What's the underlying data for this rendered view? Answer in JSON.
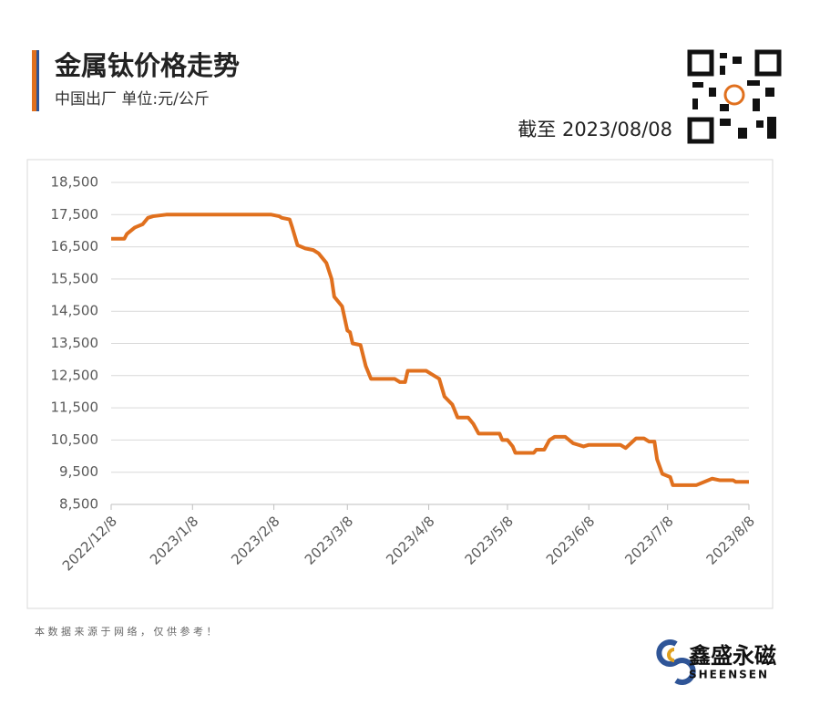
{
  "header": {
    "title": "金属钛价格走势",
    "subtitle": "中国出厂  单位:元/公斤",
    "as_of": "截至 2023/08/08"
  },
  "footer": {
    "note": "本 数 据 来 源 于 网 络 ， 仅 供 参 考 ！",
    "brand": "鑫盛永磁",
    "brand_en": "SHEENSEN"
  },
  "chart_data": {
    "type": "line",
    "x": [
      "2022/12/8",
      "2022/12/13",
      "2022/12/14",
      "2022/12/17",
      "2022/12/20",
      "2022/12/22",
      "2022/12/24",
      "2022/12/29",
      "2023/2/7",
      "2023/2/10",
      "2023/2/11",
      "2023/2/14",
      "2023/2/15",
      "2023/2/17",
      "2023/2/20",
      "2023/2/23",
      "2023/2/25",
      "2023/2/26",
      "2023/2/28",
      "2023/3/2",
      "2023/3/3",
      "2023/3/6",
      "2023/3/8",
      "2023/3/9",
      "2023/3/10",
      "2023/3/13",
      "2023/3/15",
      "2023/3/17",
      "2023/3/26",
      "2023/3/28",
      "2023/3/30",
      "2023/3/31",
      "2023/4/7",
      "2023/4/9",
      "2023/4/12",
      "2023/4/14",
      "2023/4/17",
      "2023/4/19",
      "2023/4/23",
      "2023/4/25",
      "2023/4/27",
      "2023/5/5",
      "2023/5/6",
      "2023/5/8",
      "2023/5/10",
      "2023/5/11",
      "2023/5/18",
      "2023/5/19",
      "2023/5/22",
      "2023/5/24",
      "2023/5/26",
      "2023/5/30",
      "2023/6/2",
      "2023/6/6",
      "2023/6/8",
      "2023/6/20",
      "2023/6/22",
      "2023/6/26",
      "2023/6/29",
      "2023/7/1",
      "2023/7/3",
      "2023/7/4",
      "2023/7/6",
      "2023/7/9",
      "2023/7/10",
      "2023/7/19",
      "2023/7/25",
      "2023/7/28",
      "2023/8/2",
      "2023/8/3",
      "2023/8/8"
    ],
    "series": [
      {
        "name": "金属钛",
        "color": "#e0701e",
        "values": [
          16750,
          16750,
          16900,
          17100,
          17200,
          17400,
          17450,
          17500,
          17500,
          17450,
          17400,
          17350,
          17100,
          16550,
          16450,
          16400,
          16300,
          16200,
          16000,
          15500,
          14950,
          14650,
          13900,
          13850,
          13500,
          13450,
          12800,
          12400,
          12400,
          12300,
          12300,
          12650,
          12650,
          12550,
          12400,
          11850,
          11600,
          11200,
          11200,
          11000,
          10700,
          10700,
          10500,
          10500,
          10300,
          10100,
          10100,
          10200,
          10200,
          10500,
          10600,
          10600,
          10400,
          10300,
          10350,
          10350,
          10250,
          10550,
          10550,
          10450,
          10450,
          9900,
          9450,
          9350,
          9100,
          9100,
          9300,
          9250,
          9250,
          9200,
          9200
        ]
      }
    ],
    "xlim": [
      "2022/12/8",
      "2023/8/8"
    ],
    "xticks": [
      "2022/12/8",
      "2023/1/8",
      "2023/2/8",
      "2023/3/8",
      "2023/4/8",
      "2023/5/8",
      "2023/6/8",
      "2023/7/8",
      "2023/8/8"
    ],
    "ylim": [
      8500,
      18500
    ],
    "yticks": [
      {
        "value": 8500,
        "label": "8,500"
      },
      {
        "value": 9500,
        "label": "9,500"
      },
      {
        "value": 10500,
        "label": "10,500"
      },
      {
        "value": 11500,
        "label": "11,500"
      },
      {
        "value": 12500,
        "label": "12,500"
      },
      {
        "value": 13500,
        "label": "13,500"
      },
      {
        "value": 14500,
        "label": "14,500"
      },
      {
        "value": 15500,
        "label": "15,500"
      },
      {
        "value": 16500,
        "label": "16,500"
      },
      {
        "value": 17500,
        "label": "17,500"
      },
      {
        "value": 18500,
        "label": "18,500"
      }
    ],
    "grid": true
  }
}
